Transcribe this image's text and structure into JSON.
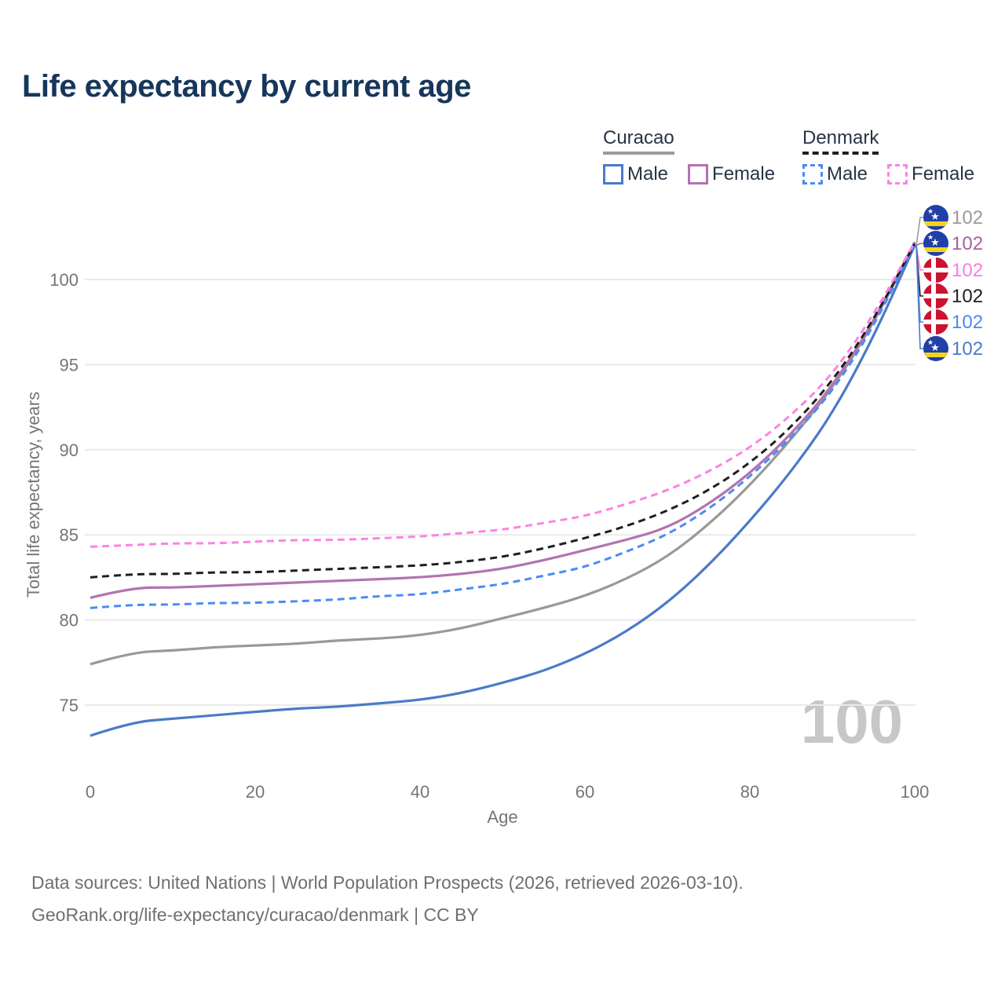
{
  "title": "Life expectancy by current age",
  "watermark": "100",
  "legend": {
    "groups": [
      {
        "title": "Curacao",
        "style": "solid",
        "underline_color": "#9b9b9b",
        "items": [
          {
            "label": "Male",
            "color": "#4a7ac9",
            "dash": "solid"
          },
          {
            "label": "Female",
            "color": "#b273b0",
            "dash": "solid"
          }
        ]
      },
      {
        "title": "Denmark",
        "style": "dashed",
        "underline_color": "#1f1f1f",
        "items": [
          {
            "label": "Male",
            "color": "#4a8cf2",
            "dash": "dashed"
          },
          {
            "label": "Female",
            "color": "#fc83e3",
            "dash": "dashed"
          }
        ]
      }
    ]
  },
  "axes": {
    "y_title": "Total life expectancy, years",
    "x_title": "Age",
    "y_ticks": [
      75,
      80,
      85,
      90,
      95,
      100
    ],
    "x_ticks": [
      0,
      20,
      40,
      60,
      80,
      100
    ]
  },
  "end_labels": [
    {
      "value": "102",
      "flag": "curacao",
      "series": "Curacao",
      "color": "#9a9a9a"
    },
    {
      "value": "102",
      "flag": "curacao",
      "series": "Curacao Female",
      "color": "#a660a2"
    },
    {
      "value": "102",
      "flag": "denmark",
      "series": "Denmark Female",
      "color": "#fc7be0"
    },
    {
      "value": "102",
      "flag": "denmark",
      "series": "Denmark",
      "color": "#1f1f1f"
    },
    {
      "value": "102",
      "flag": "denmark",
      "series": "Denmark Male",
      "color": "#4a8af0"
    },
    {
      "value": "102",
      "flag": "curacao",
      "series": "Curacao Male",
      "color": "#4a7ac9"
    }
  ],
  "footer": {
    "line1": "Data sources: United Nations | World Population Prospects (2026, retrieved 2026-03-10).",
    "line2": "GeoRank.org/life-expectancy/curacao/denmark | CC BY"
  },
  "colors": {
    "title_text": "#16365c",
    "axis_text": "#757575",
    "grid": "#eaeaea",
    "watermark": "#c7c7c7",
    "footer_text": "#6f6f6f",
    "legend_text": "#263445",
    "flag_curacao_blue": "#2040a8",
    "flag_curacao_yellow": "#f4d515",
    "flag_denmark_red": "#cc1230",
    "flag_white": "#ffffff"
  },
  "chart_data": {
    "type": "line",
    "title": "Life expectancy by current age",
    "xlabel": "Age",
    "ylabel": "Total life expectancy, years",
    "xlim": [
      0,
      100
    ],
    "ylim": [
      73,
      103
    ],
    "grid": "horizontal-only",
    "legend_position": "top-right",
    "x": [
      0,
      5,
      10,
      15,
      20,
      25,
      30,
      35,
      40,
      45,
      50,
      55,
      60,
      65,
      70,
      75,
      80,
      85,
      90,
      95,
      100
    ],
    "series": [
      {
        "name": "Curacao",
        "color": "#999999",
        "dash": "solid",
        "values": [
          77.4,
          78.1,
          78.2,
          78.4,
          78.5,
          78.6,
          78.8,
          78.9,
          79.1,
          79.5,
          80.1,
          80.7,
          81.4,
          82.4,
          83.7,
          85.6,
          87.9,
          90.6,
          93.6,
          97.4,
          102.1
        ]
      },
      {
        "name": "Curacao Male",
        "color": "#4a7ac9",
        "dash": "solid",
        "values": [
          73.2,
          74.0,
          74.2,
          74.4,
          74.6,
          74.8,
          74.9,
          75.1,
          75.3,
          75.7,
          76.3,
          77.0,
          78.0,
          79.3,
          81.0,
          83.2,
          85.8,
          88.7,
          92.1,
          96.6,
          102.0
        ]
      },
      {
        "name": "Curacao Female",
        "color": "#b273b0",
        "dash": "solid",
        "values": [
          81.3,
          81.9,
          81.9,
          82.0,
          82.1,
          82.2,
          82.3,
          82.4,
          82.5,
          82.7,
          83.0,
          83.5,
          84.1,
          84.7,
          85.4,
          86.8,
          88.6,
          90.9,
          93.7,
          97.5,
          102.2
        ]
      },
      {
        "name": "Denmark Male",
        "color": "#4a8cf2",
        "dash": "dashed",
        "values": [
          80.7,
          80.9,
          80.9,
          81.0,
          81.0,
          81.1,
          81.2,
          81.4,
          81.5,
          81.8,
          82.1,
          82.6,
          83.1,
          84.0,
          85.0,
          86.5,
          88.4,
          90.7,
          93.4,
          97.2,
          102.1
        ]
      },
      {
        "name": "Denmark",
        "color": "#1f1f1f",
        "dash": "dashed",
        "values": [
          82.5,
          82.7,
          82.7,
          82.8,
          82.8,
          82.9,
          83.0,
          83.1,
          83.2,
          83.4,
          83.7,
          84.2,
          84.8,
          85.5,
          86.4,
          87.6,
          89.2,
          91.3,
          94.0,
          97.6,
          102.1
        ]
      },
      {
        "name": "Denmark Female",
        "color": "#fc83e3",
        "dash": "dashed",
        "values": [
          84.3,
          84.4,
          84.5,
          84.5,
          84.6,
          84.7,
          84.7,
          84.8,
          84.9,
          85.1,
          85.3,
          85.7,
          86.1,
          86.8,
          87.6,
          88.7,
          90.1,
          92.0,
          94.4,
          97.9,
          102.2
        ]
      }
    ],
    "end_value_labels": [
      {
        "series": "Curacao",
        "value": 102
      },
      {
        "series": "Curacao Female",
        "value": 102
      },
      {
        "series": "Denmark Female",
        "value": 102
      },
      {
        "series": "Denmark",
        "value": 102
      },
      {
        "series": "Denmark Male",
        "value": 102
      },
      {
        "series": "Curacao Male",
        "value": 102
      }
    ]
  }
}
